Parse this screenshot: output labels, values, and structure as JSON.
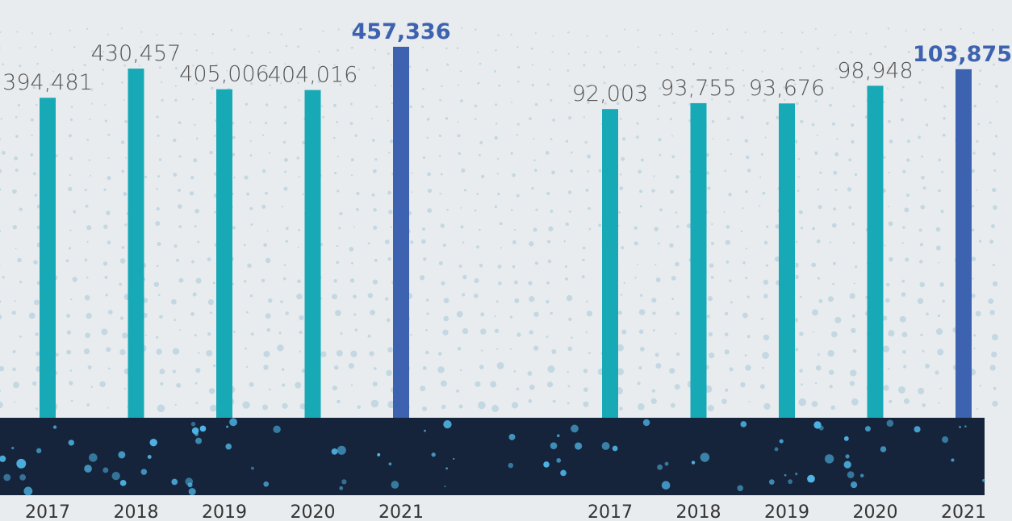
{
  "chart_data": [
    {
      "type": "bar",
      "categories": [
        "2017",
        "2018",
        "2019",
        "2020",
        "2021"
      ],
      "values": [
        394481,
        430457,
        405006,
        404016,
        457336
      ],
      "value_labels": [
        "394,481",
        "430,457",
        "405,006",
        "404,016",
        "457,336"
      ],
      "colors": [
        "#17a9b6",
        "#17a9b6",
        "#17a9b6",
        "#17a9b6",
        "#3d62af"
      ],
      "ylim": [
        0,
        515000
      ]
    },
    {
      "type": "bar",
      "categories": [
        "2017",
        "2018",
        "2019",
        "2020",
        "2021"
      ],
      "values": [
        92003,
        93755,
        93676,
        98948,
        103875
      ],
      "value_labels": [
        "92,003",
        "93,755",
        "93,676",
        "98,948",
        "103,875"
      ],
      "colors": [
        "#17a9b6",
        "#17a9b6",
        "#17a9b6",
        "#17a9b6",
        "#3d62af"
      ],
      "ylim": [
        0,
        124500
      ]
    }
  ]
}
